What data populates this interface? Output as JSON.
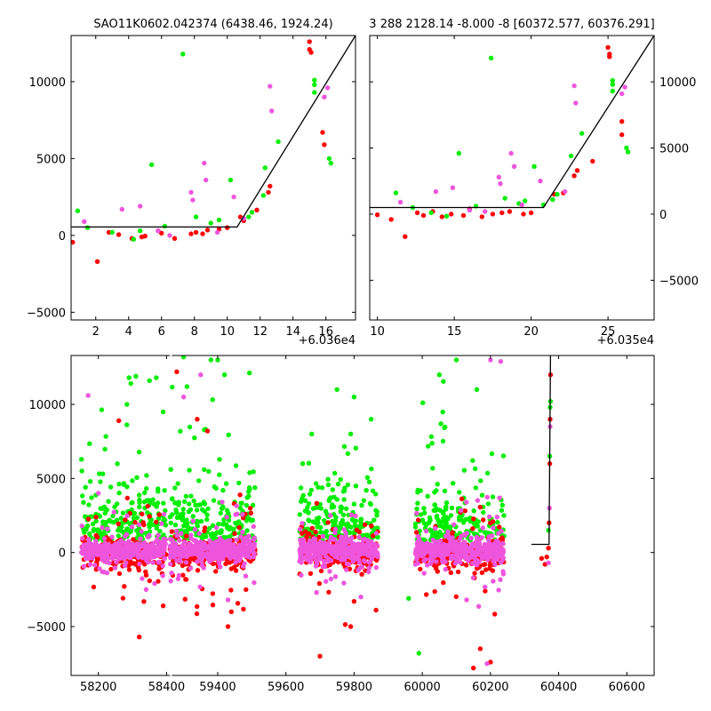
{
  "colors": {
    "red": "#ff0000",
    "green": "#00ee00",
    "magenta": "#ee55dd",
    "fit_line": "#000000"
  },
  "chart_data": [
    {
      "type": "scatter",
      "title": "SAO11K0602.042374 (6438.46, 1924.24)",
      "x_offset_label": "+6.036e4",
      "xlim": [
        0.5,
        17.8
      ],
      "ylim": [
        -5500,
        13000
      ],
      "x_ticks": [
        2,
        4,
        6,
        8,
        10,
        12,
        14,
        16
      ],
      "y_ticks": [
        -5000,
        0,
        5000,
        10000
      ],
      "y_axis_side": "left",
      "fit_line": [
        [
          0.5,
          550
        ],
        [
          10.6,
          550
        ],
        [
          17.8,
          13000
        ]
      ],
      "series": [
        {
          "color": "red",
          "points": [
            [
              0.6,
              -450
            ],
            [
              2.1,
              -1700
            ],
            [
              2.8,
              200
            ],
            [
              3.4,
              50
            ],
            [
              4.8,
              -100
            ],
            [
              4.2,
              -200
            ],
            [
              5.0,
              -50
            ],
            [
              6.0,
              150
            ],
            [
              6.8,
              -200
            ],
            [
              7.8,
              100
            ],
            [
              8.1,
              200
            ],
            [
              8.8,
              350
            ],
            [
              9.5,
              400
            ],
            [
              10.0,
              500
            ],
            [
              10.8,
              1200
            ],
            [
              11.0,
              950
            ],
            [
              11.8,
              1650
            ],
            [
              12.5,
              2800
            ],
            [
              12.6,
              3200
            ],
            [
              15.0,
              12600
            ],
            [
              15.0,
              12100
            ],
            [
              15.1,
              11900
            ],
            [
              15.8,
              6700
            ],
            [
              15.9,
              5900
            ],
            [
              8.5,
              100
            ],
            [
              5.8,
              300
            ]
          ]
        },
        {
          "color": "green",
          "points": [
            [
              0.9,
              1600
            ],
            [
              1.5,
              500
            ],
            [
              3.0,
              200
            ],
            [
              4.3,
              -250
            ],
            [
              5.4,
              4600
            ],
            [
              6.2,
              600
            ],
            [
              7.3,
              11800
            ],
            [
              8.1,
              1200
            ],
            [
              9.0,
              800
            ],
            [
              9.5,
              1000
            ],
            [
              10.2,
              3600
            ],
            [
              11.5,
              1500
            ],
            [
              12.3,
              4400
            ],
            [
              13.1,
              6100
            ],
            [
              15.3,
              10100
            ],
            [
              15.3,
              9800
            ],
            [
              15.3,
              9300
            ],
            [
              16.2,
              5000
            ],
            [
              16.3,
              4700
            ],
            [
              11.3,
              1200
            ],
            [
              12.2,
              2600
            ],
            [
              4.7,
              300
            ]
          ]
        },
        {
          "color": "magenta",
          "points": [
            [
              1.3,
              900
            ],
            [
              3.6,
              1700
            ],
            [
              4.7,
              1900
            ],
            [
              5.8,
              300
            ],
            [
              7.8,
              2800
            ],
            [
              7.9,
              2300
            ],
            [
              8.6,
              4700
            ],
            [
              8.7,
              3600
            ],
            [
              10.4,
              2500
            ],
            [
              12.6,
              9700
            ],
            [
              12.7,
              8100
            ],
            [
              15.9,
              9000
            ],
            [
              16.1,
              9600
            ],
            [
              9.4,
              200
            ],
            [
              11.0,
              1100
            ],
            [
              6.5,
              0
            ]
          ]
        }
      ]
    },
    {
      "type": "scatter",
      "title": "3 288 2128.14 -8.000 -8 [60372.577, 60376.291]",
      "x_offset_label": "+6.035e4",
      "xlim": [
        9.5,
        28.0
      ],
      "ylim": [
        -8000,
        13500
      ],
      "x_ticks": [
        10,
        15,
        20,
        25
      ],
      "y_ticks": [
        -5000,
        0,
        5000,
        10000
      ],
      "y_axis_side": "right",
      "fit_line": [
        [
          9.5,
          500
        ],
        [
          20.8,
          500
        ],
        [
          28.0,
          13500
        ]
      ],
      "series": [
        {
          "color": "red",
          "points": [
            [
              10.0,
              -50
            ],
            [
              10.9,
              -400
            ],
            [
              11.8,
              -1700
            ],
            [
              12.6,
              100
            ],
            [
              13.0,
              -100
            ],
            [
              13.6,
              200
            ],
            [
              14.2,
              -200
            ],
            [
              14.8,
              0
            ],
            [
              15.6,
              -100
            ],
            [
              16.8,
              -200
            ],
            [
              17.5,
              0
            ],
            [
              18.1,
              100
            ],
            [
              18.6,
              200
            ],
            [
              19.5,
              0
            ],
            [
              20.0,
              100
            ],
            [
              21.5,
              1500
            ],
            [
              22.1,
              1600
            ],
            [
              22.8,
              2900
            ],
            [
              23.0,
              3300
            ],
            [
              25.0,
              12600
            ],
            [
              25.1,
              12100
            ],
            [
              25.1,
              11900
            ],
            [
              25.9,
              7000
            ],
            [
              25.9,
              6000
            ],
            [
              24.0,
              4000
            ],
            [
              16.0,
              400
            ]
          ]
        },
        {
          "color": "green",
          "points": [
            [
              11.2,
              1600
            ],
            [
              12.3,
              500
            ],
            [
              13.5,
              100
            ],
            [
              14.5,
              -150
            ],
            [
              15.3,
              4600
            ],
            [
              16.4,
              600
            ],
            [
              17.4,
              11800
            ],
            [
              18.3,
              1200
            ],
            [
              19.2,
              800
            ],
            [
              19.6,
              1000
            ],
            [
              20.2,
              3600
            ],
            [
              21.7,
              1500
            ],
            [
              22.6,
              4400
            ],
            [
              23.3,
              6100
            ],
            [
              25.3,
              10100
            ],
            [
              25.3,
              9800
            ],
            [
              25.3,
              9300
            ],
            [
              26.2,
              5000
            ],
            [
              26.3,
              4700
            ],
            [
              21.4,
              1100
            ],
            [
              20.8,
              700
            ]
          ]
        },
        {
          "color": "magenta",
          "points": [
            [
              11.5,
              900
            ],
            [
              13.8,
              1700
            ],
            [
              14.9,
              2000
            ],
            [
              16.0,
              300
            ],
            [
              17.9,
              2800
            ],
            [
              18.0,
              2300
            ],
            [
              18.7,
              4600
            ],
            [
              18.9,
              3600
            ],
            [
              20.6,
              2500
            ],
            [
              22.8,
              9700
            ],
            [
              22.9,
              8400
            ],
            [
              25.9,
              9100
            ],
            [
              26.1,
              9600
            ],
            [
              17.0,
              200
            ],
            [
              19.4,
              700
            ],
            [
              22.2,
              1700
            ]
          ]
        }
      ]
    },
    {
      "type": "scatter",
      "title": "",
      "xlim": [
        58120,
        60680
      ],
      "ylim": [
        -8300,
        13300
      ],
      "x_ticks": [
        58200,
        58400,
        59400,
        59600,
        59800,
        60000,
        60200,
        60400,
        60600
      ],
      "y_ticks": [
        -5000,
        0,
        5000,
        10000
      ],
      "y_axis_side": "left",
      "x_axis_breaks": [
        [
          58410,
          59260
        ]
      ],
      "fit_line": [
        [
          60320,
          550
        ],
        [
          60372,
          550
        ],
        [
          60376,
          13300
        ]
      ],
      "season_ranges": [
        [
          58150,
          58400
        ],
        [
          59260,
          59510
        ],
        [
          59640,
          59870
        ],
        [
          59980,
          60240
        ]
      ],
      "series": [
        {
          "color": "red",
          "points": [
            [
              58260,
              8900
            ],
            [
              58320,
              -5700
            ],
            [
              58390,
              -3600
            ],
            [
              59280,
              12200
            ],
            [
              59340,
              9000
            ],
            [
              59370,
              8200
            ],
            [
              59430,
              -5000
            ],
            [
              59440,
              -4000
            ],
            [
              59700,
              -7000
            ],
            [
              59790,
              -5000
            ],
            [
              59800,
              -3300
            ],
            [
              60150,
              -7800
            ],
            [
              60170,
              -6500
            ],
            [
              60200,
              -7400
            ],
            [
              60350,
              -400
            ],
            [
              60360,
              -800
            ],
            [
              60365,
              -300
            ],
            [
              60370,
              300
            ],
            [
              60372,
              2000
            ],
            [
              60374,
              6000
            ],
            [
              60375,
              9000
            ],
            [
              60376,
              12000
            ]
          ]
        },
        {
          "color": "green",
          "points": [
            [
              58290,
              11800
            ],
            [
              58310,
              11900
            ],
            [
              58350,
              11600
            ],
            [
              58370,
              11800
            ],
            [
              58390,
              9500
            ],
            [
              59300,
              13200
            ],
            [
              59310,
              11200
            ],
            [
              59380,
              13000
            ],
            [
              59400,
              13000
            ],
            [
              59420,
              12000
            ],
            [
              59750,
              11000
            ],
            [
              59790,
              8000
            ],
            [
              59800,
              10500
            ],
            [
              59850,
              9000
            ],
            [
              59960,
              -3100
            ],
            [
              59990,
              -6800
            ],
            [
              60050,
              12000
            ],
            [
              60100,
              13000
            ],
            [
              60160,
              11000
            ],
            [
              60370,
              1500
            ],
            [
              60374,
              6500
            ],
            [
              60375,
              9800
            ],
            [
              60376,
              10200
            ]
          ]
        },
        {
          "color": "magenta",
          "points": [
            [
              58170,
              10600
            ],
            [
              58200,
              4000
            ],
            [
              58340,
              -2500
            ],
            [
              59350,
              12000
            ],
            [
              59300,
              10500
            ],
            [
              59430,
              -3200
            ],
            [
              59690,
              -2700
            ],
            [
              59820,
              -3000
            ],
            [
              60200,
              13000
            ],
            [
              60230,
              12900
            ],
            [
              60190,
              -7500
            ],
            [
              60370,
              -700
            ],
            [
              60373,
              3000
            ],
            [
              60375,
              8500
            ]
          ]
        }
      ]
    }
  ]
}
